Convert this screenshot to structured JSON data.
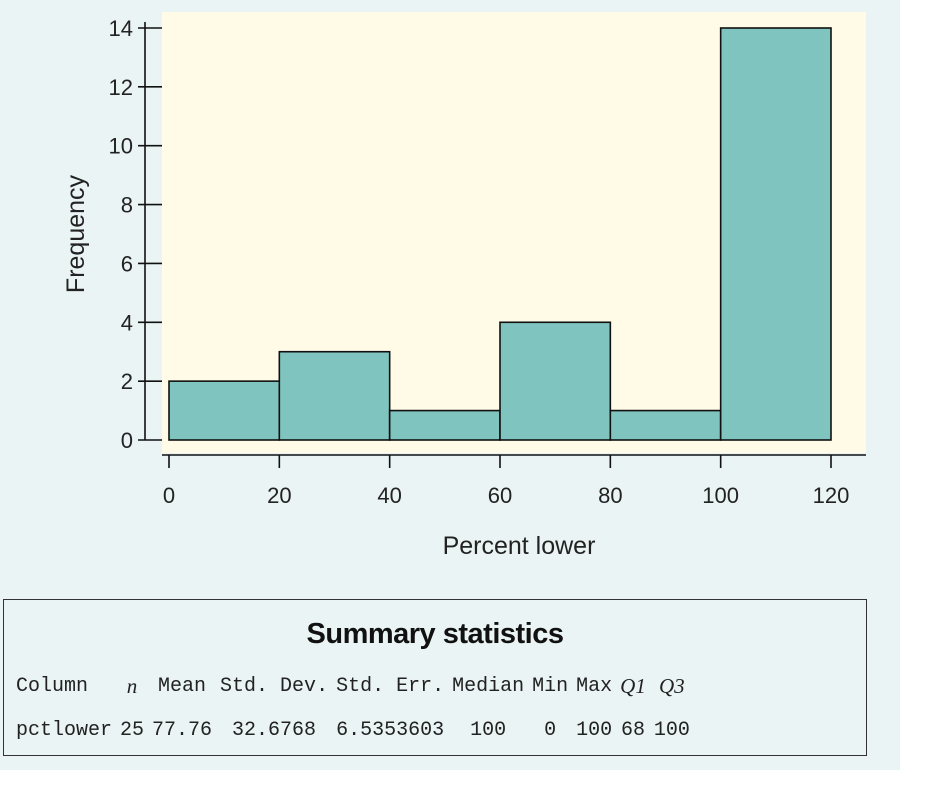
{
  "chart_data": {
    "type": "bar",
    "title": "",
    "xlabel": "Percent lower",
    "ylabel": "Frequency",
    "bins": [
      {
        "start": 0,
        "end": 20,
        "count": 2
      },
      {
        "start": 20,
        "end": 40,
        "count": 3
      },
      {
        "start": 40,
        "end": 60,
        "count": 1
      },
      {
        "start": 60,
        "end": 80,
        "count": 4
      },
      {
        "start": 80,
        "end": 100,
        "count": 1
      },
      {
        "start": 100,
        "end": 120,
        "count": 14
      }
    ],
    "xlim": [
      0,
      120
    ],
    "ylim": [
      0,
      14
    ],
    "xticks": [
      "0",
      "20",
      "40",
      "60",
      "80",
      "100",
      "120"
    ],
    "yticks": [
      "0",
      "2",
      "4",
      "6",
      "8",
      "10",
      "12",
      "14"
    ],
    "grid": false,
    "colors": {
      "bar": "#80c4c0",
      "plot_bg": "#fffbe6",
      "panel_bg": "#eaf4f4"
    }
  },
  "summary": {
    "title": "Summary statistics",
    "headers": [
      "Column",
      "n",
      "Mean",
      "Std. Dev.",
      "Std. Err.",
      "Median",
      "Min",
      "Max",
      "Q1",
      "Q3"
    ],
    "rows": [
      [
        "pctlower",
        "25",
        "77.76",
        "32.6768",
        "6.5353603",
        "100",
        "0",
        "100",
        "68",
        "100"
      ]
    ]
  }
}
